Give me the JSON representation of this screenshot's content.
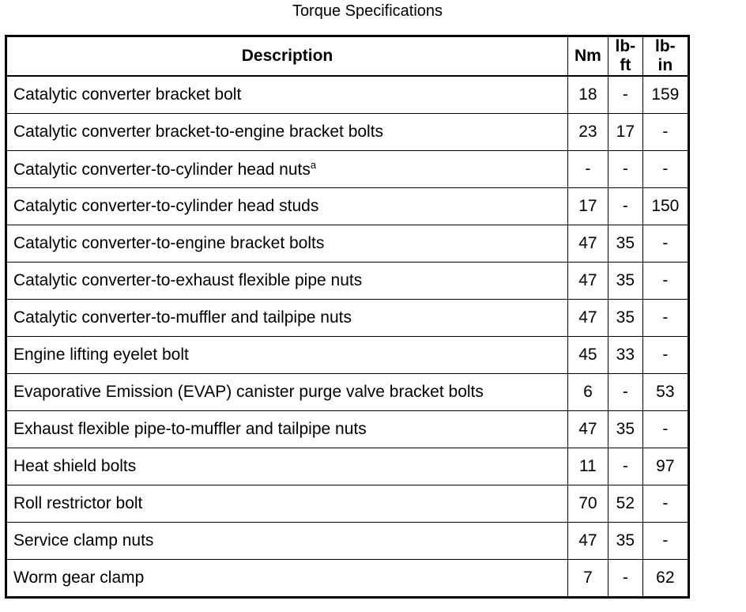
{
  "title": "Torque Specifications",
  "headers": [
    "Description",
    "Nm",
    "lb-ft",
    "lb-in"
  ],
  "rows": [
    {
      "description": "Catalytic converter bracket bolt",
      "note": "",
      "nm": "18",
      "lbft": "-",
      "lbin": "159"
    },
    {
      "description": "Catalytic converter bracket-to-engine bracket bolts",
      "note": "",
      "nm": "23",
      "lbft": "17",
      "lbin": "-"
    },
    {
      "description": "Catalytic converter-to-cylinder head nuts",
      "note": "a",
      "nm": "-",
      "lbft": "-",
      "lbin": "-"
    },
    {
      "description": "Catalytic converter-to-cylinder head studs",
      "note": "",
      "nm": "17",
      "lbft": "-",
      "lbin": "150"
    },
    {
      "description": "Catalytic converter-to-engine bracket bolts",
      "note": "",
      "nm": "47",
      "lbft": "35",
      "lbin": "-"
    },
    {
      "description": "Catalytic converter-to-exhaust flexible pipe nuts",
      "note": "",
      "nm": "47",
      "lbft": "35",
      "lbin": "-"
    },
    {
      "description": "Catalytic converter-to-muffler and tailpipe nuts",
      "note": "",
      "nm": "47",
      "lbft": "35",
      "lbin": "-"
    },
    {
      "description": "Engine lifting eyelet bolt",
      "note": "",
      "nm": "45",
      "lbft": "33",
      "lbin": "-"
    },
    {
      "description": "Evaporative Emission (EVAP) canister purge valve bracket bolts",
      "note": "",
      "nm": "6",
      "lbft": "-",
      "lbin": "53"
    },
    {
      "description": "Exhaust flexible pipe-to-muffler and tailpipe nuts",
      "note": "",
      "nm": "47",
      "lbft": "35",
      "lbin": "-"
    },
    {
      "description": "Heat shield bolts",
      "note": "",
      "nm": "11",
      "lbft": "-",
      "lbin": "97"
    },
    {
      "description": "Roll restrictor bolt",
      "note": "",
      "nm": "70",
      "lbft": "52",
      "lbin": "-"
    },
    {
      "description": "Service clamp nuts",
      "note": "",
      "nm": "47",
      "lbft": "35",
      "lbin": "-"
    },
    {
      "description": "Worm gear clamp",
      "note": "",
      "nm": "7",
      "lbft": "-",
      "lbin": "62"
    }
  ]
}
